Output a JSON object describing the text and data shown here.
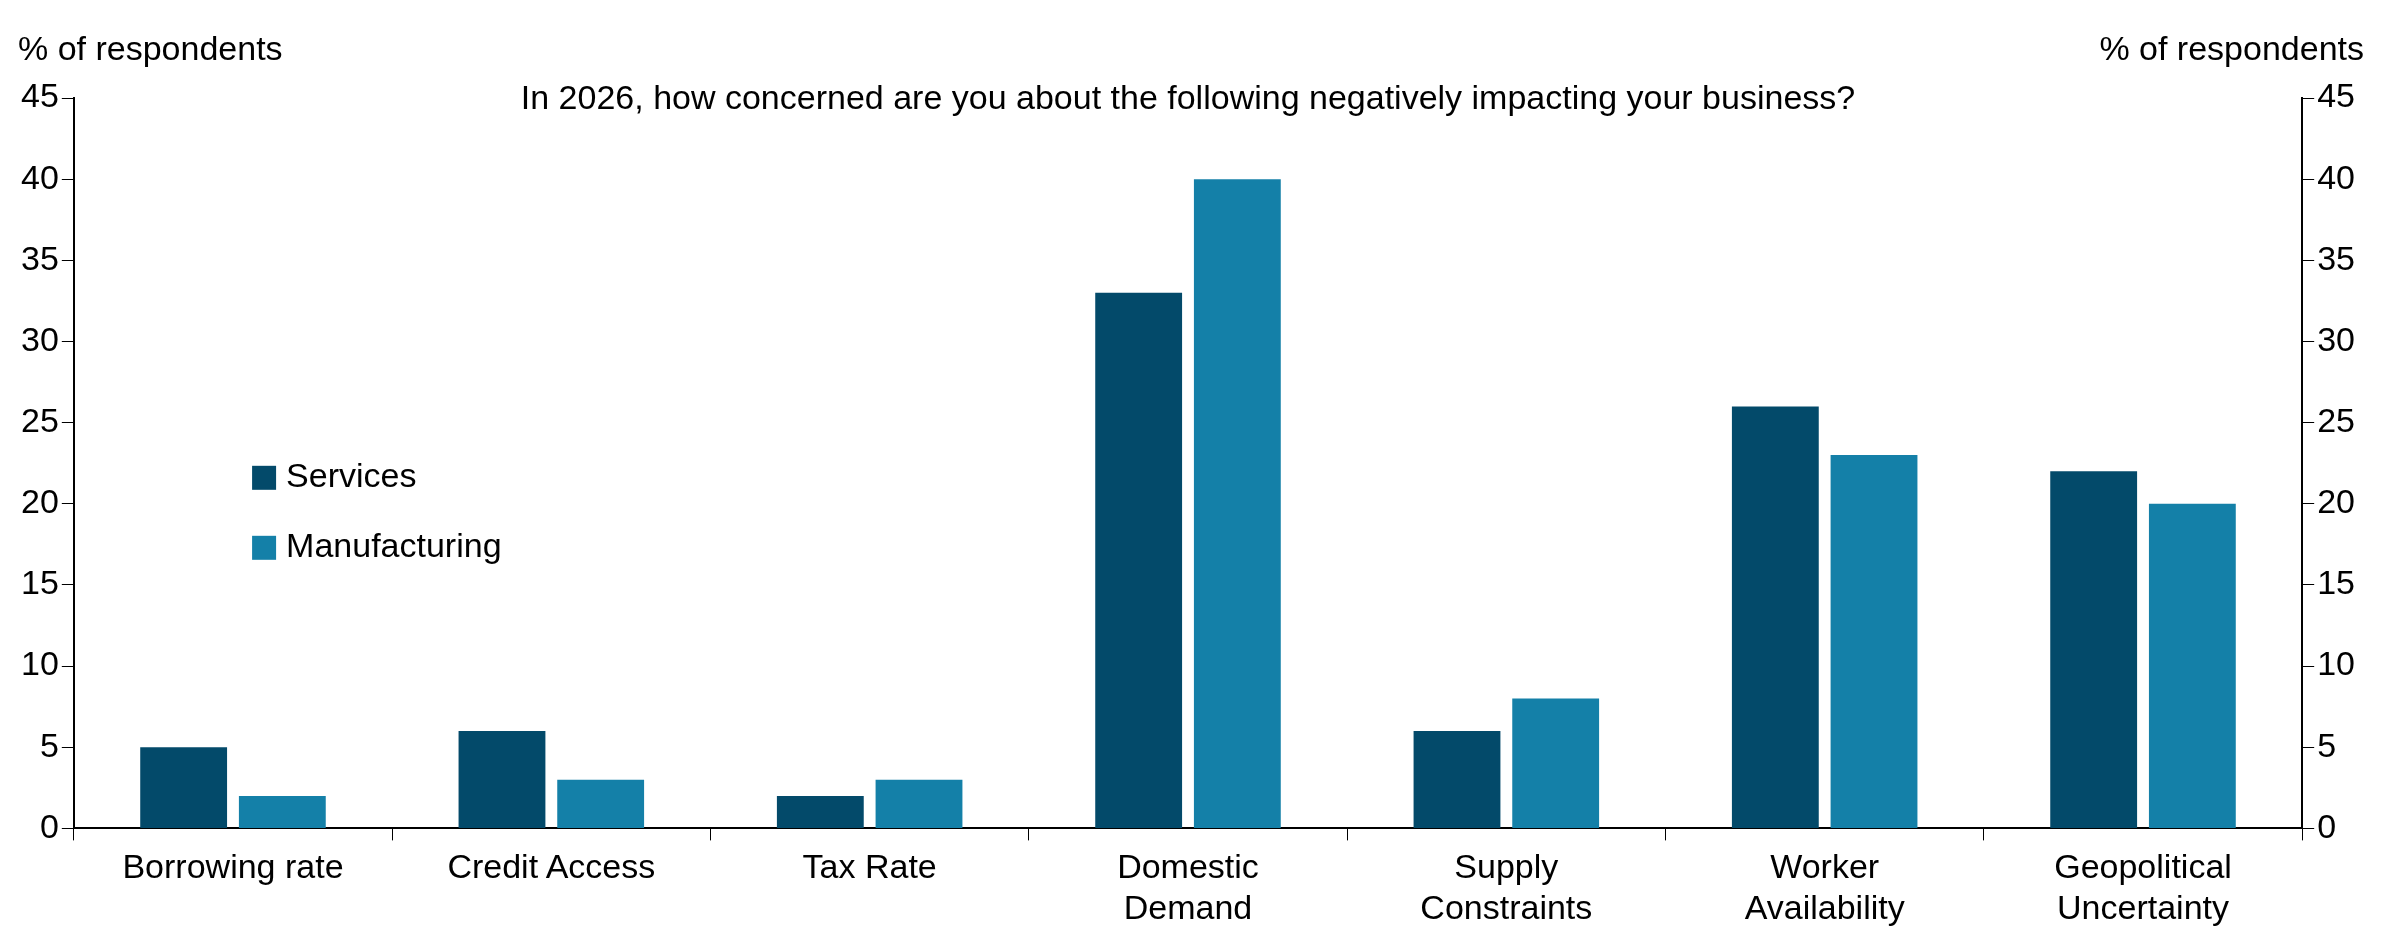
{
  "chart_data": {
    "type": "bar",
    "title": "In 2026, how concerned are you about the following negatively impacting your business?",
    "ylabel": "% of respondents",
    "y2label": "% of respondents",
    "categories": [
      "Borrowing rate",
      "Credit Access",
      "Tax Rate",
      "Domestic Demand",
      "Supply Constraints",
      "Worker Availability",
      "Geopolitical Uncertainty"
    ],
    "series": [
      {
        "name": "Services",
        "color": "#034a6a",
        "values": [
          5,
          6,
          2,
          33,
          6,
          26,
          22
        ]
      },
      {
        "name": "Manufacturing",
        "color": "#1480a8",
        "values": [
          2,
          3,
          3,
          40,
          8,
          23,
          20
        ]
      }
    ],
    "ylim": [
      0,
      45
    ],
    "yticks": [
      0,
      5,
      10,
      15,
      20,
      25,
      30,
      35,
      40,
      45
    ],
    "y2lim": [
      0,
      45
    ],
    "y2ticks": [
      0,
      5,
      10,
      15,
      20,
      25,
      30,
      35,
      40,
      45
    ],
    "grid": false,
    "legend": "left"
  }
}
